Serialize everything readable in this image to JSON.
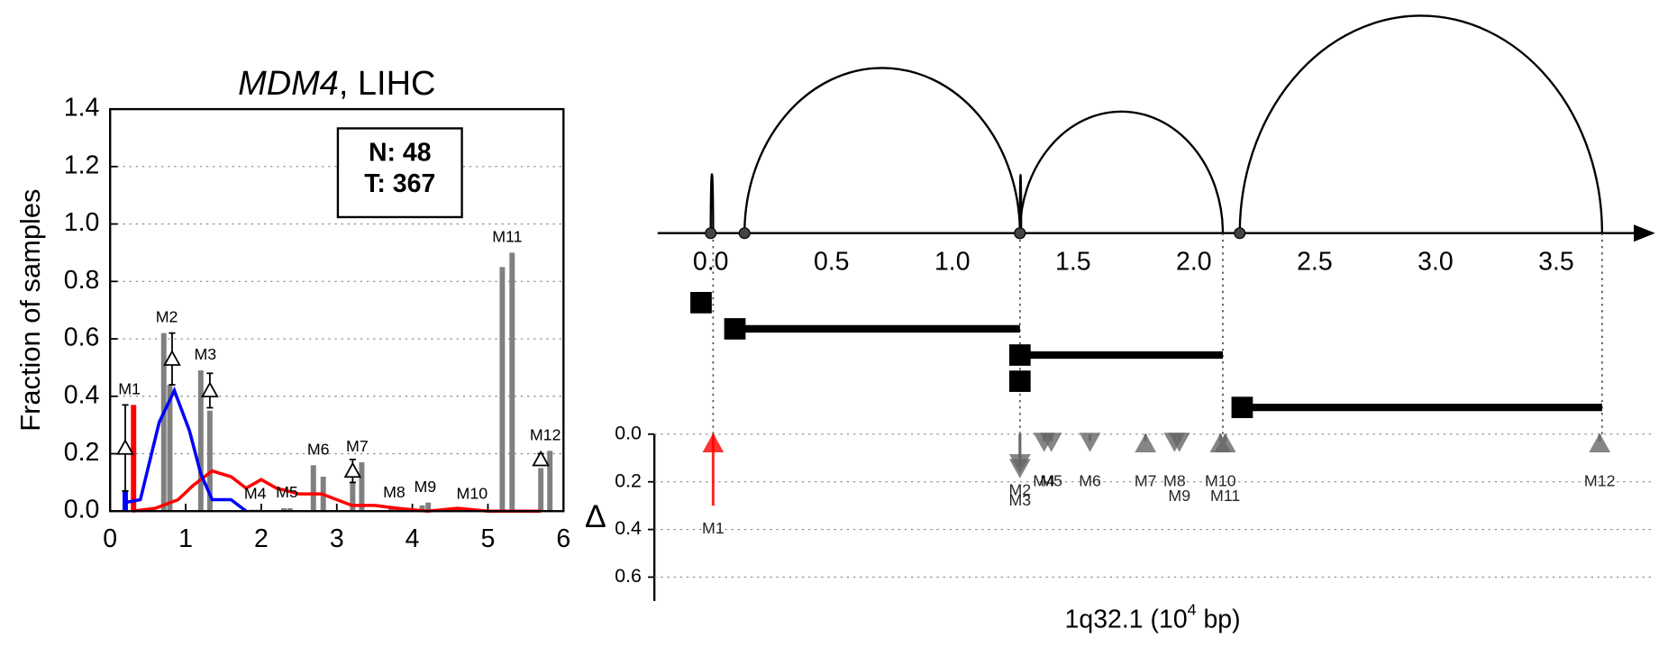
{
  "chart_data": [
    {
      "type": "bar",
      "title": [
        "MDM4",
        ", LIHC"
      ],
      "ylabel": "Fraction of samples",
      "xlim": [
        0,
        6
      ],
      "xticks": [
        0,
        1,
        2,
        3,
        4,
        5,
        6
      ],
      "ylim": [
        0,
        1.4
      ],
      "yticks": [
        {
          "value": 0,
          "label": "0.0"
        },
        {
          "value": 0.2,
          "label": "0.2"
        },
        {
          "value": 0.4,
          "label": "0.4"
        },
        {
          "value": 0.6,
          "label": "0.6"
        },
        {
          "value": 0.8,
          "label": "0.8"
        },
        {
          "value": 1.0,
          "label": "1.0"
        },
        {
          "value": 1.2,
          "label": "1.2"
        },
        {
          "value": 1.4,
          "label": "1.4"
        }
      ],
      "grid": true,
      "annotation": [
        "N: 48",
        "T: 367"
      ],
      "bars": {
        "x": [
          0.2,
          0.31,
          0.71,
          0.79,
          1.2,
          1.32,
          1.88,
          1.96,
          2.3,
          2.38,
          2.69,
          2.82,
          3.21,
          3.33,
          3.72,
          3.8,
          4.13,
          4.21,
          4.75,
          4.83,
          5.19,
          5.32,
          5.7,
          5.82
        ],
        "values": [
          0.07,
          0.37,
          0.62,
          0.44,
          0.49,
          0.35,
          0.005,
          0.005,
          0.01,
          0.01,
          0.16,
          0.12,
          0.1,
          0.17,
          0.01,
          0.01,
          0.02,
          0.03,
          0.005,
          0.005,
          0.85,
          0.9,
          0.15,
          0.21
        ],
        "colors": [
          "#0000ff",
          "#ff0000",
          "#808080",
          "#808080",
          "#808080",
          "#808080",
          "#808080",
          "#808080",
          "#808080",
          "#808080",
          "#808080",
          "#808080",
          "#808080",
          "#808080",
          "#808080",
          "#808080",
          "#808080",
          "#808080",
          "#808080",
          "#808080",
          "#808080",
          "#808080",
          "#808080",
          "#808080"
        ]
      },
      "bar_labels": [
        "M1",
        "M2",
        "M3",
        "M4",
        "M5",
        "M6",
        "M7",
        "M8",
        "M9",
        "M10",
        "M11",
        "M12"
      ],
      "label_colors": [
        "#000000",
        "#808080",
        "#808080",
        "#808080",
        "#808080",
        "#808080",
        "#808080",
        "#808080",
        "#808080",
        "#808080",
        "#808080",
        "#808080"
      ],
      "series": [
        {
          "color": "#ff0000",
          "x": [
            0.3,
            0.6,
            0.9,
            1.1,
            1.35,
            1.6,
            1.8,
            2.0,
            2.2,
            2.5,
            2.8,
            3.0,
            3.2,
            3.5,
            3.8,
            4.2,
            4.6,
            5.0,
            5.5,
            5.7
          ],
          "values": [
            0.0,
            0.01,
            0.04,
            0.09,
            0.14,
            0.12,
            0.08,
            0.11,
            0.08,
            0.06,
            0.06,
            0.04,
            0.02,
            0.02,
            0.01,
            0.0,
            0.01,
            0.0,
            0.0,
            0.0
          ]
        },
        {
          "color": "#0000ff",
          "x": [
            0.2,
            0.4,
            0.65,
            0.85,
            1.05,
            1.2,
            1.35,
            1.6,
            1.8
          ],
          "values": [
            0.03,
            0.04,
            0.31,
            0.42,
            0.28,
            0.13,
            0.04,
            0.04,
            0.0
          ]
        }
      ],
      "errorbars": {
        "x": [
          0.2,
          0.82,
          1.32,
          3.21,
          5.7
        ],
        "values": [
          0.22,
          0.53,
          0.42,
          0.14,
          0.18
        ],
        "errors": [
          0.15,
          0.09,
          0.06,
          0.04,
          0.02
        ]
      }
    },
    {
      "type": "arc",
      "xlabel": [
        "1q32.1 (10",
        "4",
        " bp)"
      ],
      "xlim": [
        -0.22,
        3.83
      ],
      "xticks": [
        {
          "value": 0,
          "label": "0.0"
        },
        {
          "value": 0.5,
          "label": "0.5"
        },
        {
          "value": 1.0,
          "label": "1.0"
        },
        {
          "value": 1.5,
          "label": "1.5"
        },
        {
          "value": 2.0,
          "label": "2.0"
        },
        {
          "value": 2.5,
          "label": "2.5"
        },
        {
          "value": 3.0,
          "label": "3.0"
        },
        {
          "value": 3.5,
          "label": "3.5"
        }
      ],
      "arcs": {
        "start": [
          0.0,
          0.14,
          1.28,
          1.28,
          2.19
        ],
        "end": [
          0.01,
          1.28,
          1.285,
          2.12,
          3.69
        ]
      },
      "segments": {
        "start": [
          -0.04,
          0.1,
          1.28,
          1.28,
          2.2
        ],
        "end": [
          0.0,
          1.28,
          2.12,
          1.29,
          3.69
        ]
      },
      "guides": [
        0.01,
        1.28,
        2.12,
        3.69
      ]
    },
    {
      "type": "marker",
      "ylabel": "Δ",
      "xlim": [
        -0.22,
        3.83
      ],
      "ylim": [
        0,
        0.7
      ],
      "inverted": true,
      "yticks": [
        {
          "value": 0,
          "label": "0.0"
        },
        {
          "value": 0.2,
          "label": "0.2"
        },
        {
          "value": 0.4,
          "label": "0.4"
        },
        {
          "value": 0.6,
          "label": "0.6"
        }
      ],
      "grid": true,
      "labels": [
        "M1",
        "M2",
        "M3",
        "M4",
        "M5",
        "M6",
        "M7",
        "M8",
        "M9",
        "M10",
        "M11",
        "M12"
      ],
      "x": [
        0.01,
        1.28,
        1.28,
        1.38,
        1.41,
        1.57,
        1.8,
        1.92,
        1.94,
        2.11,
        2.13,
        3.68
      ],
      "values": [
        0.3,
        0.14,
        0.12,
        0.03,
        0.03,
        0.03,
        0.03,
        0.03,
        0.03,
        0.03,
        0.03,
        0.03
      ],
      "directions": [
        "up",
        "down",
        "down",
        "down",
        "down",
        "down",
        "up",
        "down",
        "down",
        "up",
        "up",
        "up"
      ],
      "colors": [
        "#ff0000",
        "#666666",
        "#666666",
        "#666666",
        "#666666",
        "#666666",
        "#666666",
        "#666666",
        "#666666",
        "#666666",
        "#666666",
        "#666666"
      ]
    }
  ]
}
